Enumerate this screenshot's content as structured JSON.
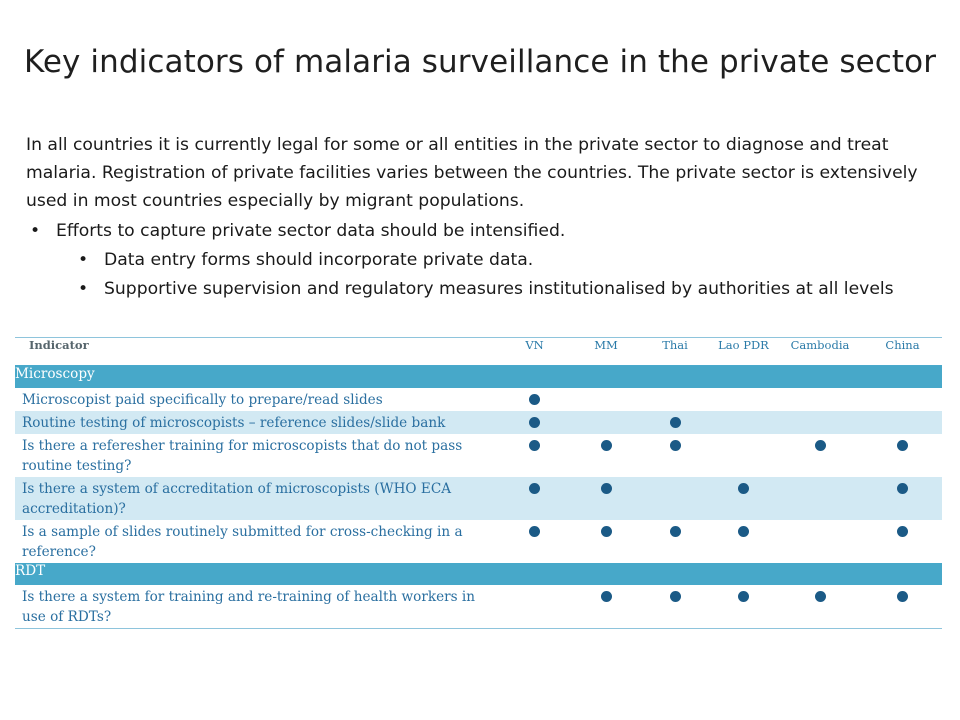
{
  "title": "Key indicators of malaria surveillance in the private sector",
  "intro": "In all countries it is currently legal for some or all entities in the private sector to diagnose and treat malaria. Registration of private facilities varies between the countries. The private sector is extensively used in most countries especially by migrant populations.",
  "bullets": {
    "b1": "Efforts to capture private sector data should be intensified.",
    "b2": "Data entry forms should incorporate private data.",
    "b3": "Supportive supervision and regulatory measures  institutionalised by authorities at all levels",
    "marker": "•"
  },
  "table": {
    "header": [
      "Indicator",
      "VN",
      "MM",
      "Thai",
      "Lao PDR",
      "Cambodia",
      "China"
    ],
    "sections": [
      {
        "name": "Microscopy",
        "rows": [
          {
            "label": "Microscopist paid specifically to prepare/read slides",
            "marks": [
              true,
              false,
              false,
              false,
              false,
              false
            ]
          },
          {
            "label": "Routine testing of microscopists – reference slides/slide bank",
            "marks": [
              true,
              false,
              true,
              false,
              false,
              false
            ]
          },
          {
            "label": "Is there a referesher training for microscopists that do not pass routine testing?",
            "marks": [
              true,
              true,
              true,
              false,
              true,
              true
            ]
          },
          {
            "label": "Is there a system of accreditation of microscopists (WHO ECA accreditation)?",
            "marks": [
              true,
              true,
              false,
              true,
              false,
              true
            ]
          },
          {
            "label": "Is a sample of slides routinely submitted for cross-checking in a reference?",
            "marks": [
              true,
              true,
              true,
              true,
              false,
              true
            ]
          }
        ]
      },
      {
        "name": "RDT",
        "rows": [
          {
            "label": "Is there a system for training and re-training of health workers in use of RDTs?",
            "marks": [
              false,
              true,
              true,
              true,
              true,
              true
            ]
          }
        ]
      }
    ]
  },
  "colors": {
    "section_bg": "#47a8c9",
    "alt_row_bg": "#d2e9f3",
    "row_text": "#2a6fa0",
    "mark": "#1b5a86"
  }
}
